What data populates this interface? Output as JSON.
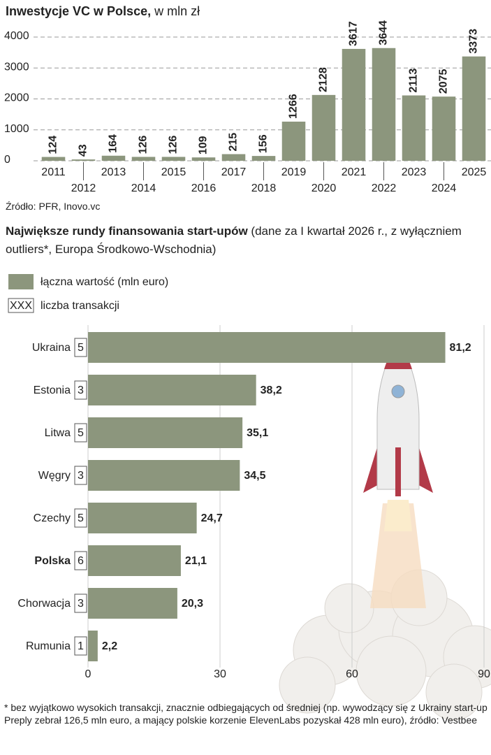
{
  "chart_data": [
    {
      "type": "bar",
      "title": "Inwestycje VC w Polsce,",
      "subtitle": "w mln zł",
      "categories": [
        "2011",
        "2012",
        "2013",
        "2014",
        "2015",
        "2016",
        "2017",
        "2018",
        "2019",
        "2020",
        "2021",
        "2022",
        "2023",
        "2024",
        "2025"
      ],
      "values": [
        124,
        43,
        164,
        126,
        126,
        109,
        215,
        156,
        1266,
        2128,
        3617,
        3644,
        2113,
        2075,
        3373
      ],
      "color": "#8c967d",
      "ylim": [
        0,
        4000
      ],
      "yticks": [
        0,
        1000,
        2000,
        3000,
        4000
      ],
      "grid": true,
      "source": "Źródło: PFR, Inovo.vc"
    },
    {
      "type": "barh",
      "title": "Największe rundy finansowania start-upów",
      "subtitle": "(dane za I kwartał 2026 r., z wyłączniem outliers*, Europa Środkowo-Wschodnia)",
      "categories": [
        "Ukraina",
        "Estonia",
        "Litwa",
        "Węgry",
        "Czechy",
        "Polska",
        "Chorwacja",
        "Rumunia"
      ],
      "highlight": 5,
      "series": [
        {
          "name": "łączna wartość (mln euro)",
          "color": "#8c967d",
          "values": [
            81.2,
            38.2,
            35.1,
            34.5,
            24.7,
            21.1,
            20.3,
            2.2
          ],
          "value_labels": [
            "81,2",
            "38,2",
            "35,1",
            "34,5",
            "24,7",
            "21,1",
            "20,3",
            "2,2"
          ]
        }
      ],
      "counts": {
        "name": "liczba transakcji",
        "legend_symbol": "XXX",
        "values": [
          5,
          3,
          5,
          3,
          5,
          6,
          3,
          1
        ]
      },
      "xlim": [
        0,
        90
      ],
      "xticks": [
        0,
        30,
        60,
        90
      ],
      "grid": true,
      "note": "* bez wyjątkowo wysokich transakcji, znacznie odbiegających od średniej (np. wywodzący się z Ukrainy start-up Preply zebrał 126,5 mln euro, a mający polskie korzenie ElevenLabs pozyskał 428 mln euro), źródło: Vestbee"
    }
  ]
}
